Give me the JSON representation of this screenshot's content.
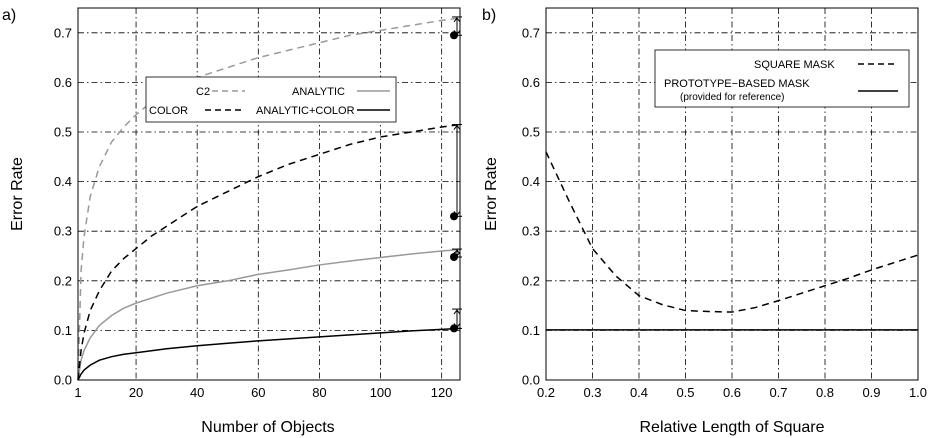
{
  "chart_data": [
    {
      "panel_label": "a)",
      "type": "line",
      "xlabel": "Number of Objects",
      "ylabel": "Error Rate",
      "xlim": [
        1,
        126
      ],
      "ylim": [
        0,
        0.75
      ],
      "xticks": [
        1,
        20,
        40,
        60,
        80,
        100,
        120
      ],
      "yticks": [
        0.0,
        0.1,
        0.2,
        0.3,
        0.4,
        0.5,
        0.6,
        0.7
      ],
      "grid": true,
      "legend_position": "center-right",
      "series": [
        {
          "name": "C2",
          "style": "dashed",
          "color": "#999999",
          "points": [
            [
              1,
              0.0
            ],
            [
              2,
              0.22
            ],
            [
              3,
              0.29
            ],
            [
              5,
              0.37
            ],
            [
              8,
              0.43
            ],
            [
              12,
              0.48
            ],
            [
              16,
              0.51
            ],
            [
              20,
              0.535
            ],
            [
              25,
              0.56
            ],
            [
              30,
              0.58
            ],
            [
              40,
              0.61
            ],
            [
              50,
              0.63
            ],
            [
              60,
              0.65
            ],
            [
              70,
              0.665
            ],
            [
              80,
              0.68
            ],
            [
              90,
              0.695
            ],
            [
              100,
              0.705
            ],
            [
              110,
              0.715
            ],
            [
              120,
              0.725
            ],
            [
              126,
              0.73
            ]
          ]
        },
        {
          "name": "ANALYTIC",
          "style": "solid",
          "color": "#999999",
          "points": [
            [
              1,
              0.0
            ],
            [
              2,
              0.04
            ],
            [
              3,
              0.06
            ],
            [
              5,
              0.085
            ],
            [
              8,
              0.11
            ],
            [
              12,
              0.13
            ],
            [
              16,
              0.145
            ],
            [
              20,
              0.155
            ],
            [
              30,
              0.175
            ],
            [
              40,
              0.19
            ],
            [
              50,
              0.2
            ],
            [
              60,
              0.213
            ],
            [
              70,
              0.222
            ],
            [
              80,
              0.232
            ],
            [
              90,
              0.24
            ],
            [
              100,
              0.247
            ],
            [
              110,
              0.254
            ],
            [
              120,
              0.26
            ],
            [
              126,
              0.263
            ]
          ]
        },
        {
          "name": "COLOR",
          "style": "dashed",
          "color": "#000000",
          "points": [
            [
              1,
              0.0
            ],
            [
              2,
              0.06
            ],
            [
              3,
              0.095
            ],
            [
              5,
              0.14
            ],
            [
              8,
              0.18
            ],
            [
              12,
              0.22
            ],
            [
              16,
              0.245
            ],
            [
              20,
              0.265
            ],
            [
              25,
              0.29
            ],
            [
              30,
              0.31
            ],
            [
              40,
              0.35
            ],
            [
              50,
              0.38
            ],
            [
              60,
              0.41
            ],
            [
              70,
              0.435
            ],
            [
              80,
              0.455
            ],
            [
              90,
              0.475
            ],
            [
              100,
              0.49
            ],
            [
              110,
              0.5
            ],
            [
              120,
              0.51
            ],
            [
              126,
              0.515
            ]
          ]
        },
        {
          "name": "ANALYTIC+COLOR",
          "style": "solid",
          "color": "#000000",
          "points": [
            [
              1,
              0.0
            ],
            [
              2,
              0.012
            ],
            [
              3,
              0.02
            ],
            [
              5,
              0.03
            ],
            [
              8,
              0.04
            ],
            [
              12,
              0.047
            ],
            [
              16,
              0.052
            ],
            [
              20,
              0.055
            ],
            [
              30,
              0.063
            ],
            [
              40,
              0.069
            ],
            [
              50,
              0.074
            ],
            [
              60,
              0.079
            ],
            [
              70,
              0.083
            ],
            [
              80,
              0.087
            ],
            [
              90,
              0.091
            ],
            [
              100,
              0.095
            ],
            [
              110,
              0.099
            ],
            [
              120,
              0.102
            ],
            [
              126,
              0.104
            ]
          ]
        }
      ],
      "error_bars": [
        {
          "x": 126,
          "low": 0.695,
          "high": 0.732
        },
        {
          "x": 126,
          "low": 0.33,
          "high": 0.515
        },
        {
          "x": 126,
          "low": 0.248,
          "high": 0.264
        },
        {
          "x": 126,
          "low": 0.104,
          "high": 0.143
        }
      ]
    },
    {
      "panel_label": "b)",
      "type": "line",
      "xlabel": "Relative Length of Square",
      "ylabel": "Error Rate",
      "xlim": [
        0.2,
        1.0
      ],
      "ylim": [
        0,
        0.75
      ],
      "xticks": [
        0.2,
        0.3,
        0.4,
        0.5,
        0.6,
        0.7,
        0.8,
        0.9,
        1.0
      ],
      "yticks": [
        0.0,
        0.1,
        0.2,
        0.3,
        0.4,
        0.5,
        0.6,
        0.7
      ],
      "grid": true,
      "legend_position": "top-right",
      "series": [
        {
          "name": "SQUARE MASK",
          "style": "dashed",
          "color": "#000000",
          "points": [
            [
              0.2,
              0.46
            ],
            [
              0.25,
              0.36
            ],
            [
              0.3,
              0.265
            ],
            [
              0.35,
              0.21
            ],
            [
              0.4,
              0.17
            ],
            [
              0.45,
              0.152
            ],
            [
              0.5,
              0.14
            ],
            [
              0.55,
              0.138
            ],
            [
              0.6,
              0.137
            ],
            [
              0.65,
              0.146
            ],
            [
              0.7,
              0.16
            ],
            [
              0.75,
              0.175
            ],
            [
              0.8,
              0.19
            ],
            [
              0.85,
              0.205
            ],
            [
              0.9,
              0.222
            ],
            [
              0.95,
              0.237
            ],
            [
              1.0,
              0.252
            ]
          ]
        },
        {
          "name": "PROTOTYPE−BASED MASK",
          "note": "(provided for reference)",
          "style": "solid",
          "color": "#000000",
          "points": [
            [
              0.2,
              0.101
            ],
            [
              1.0,
              0.101
            ]
          ]
        }
      ]
    }
  ]
}
